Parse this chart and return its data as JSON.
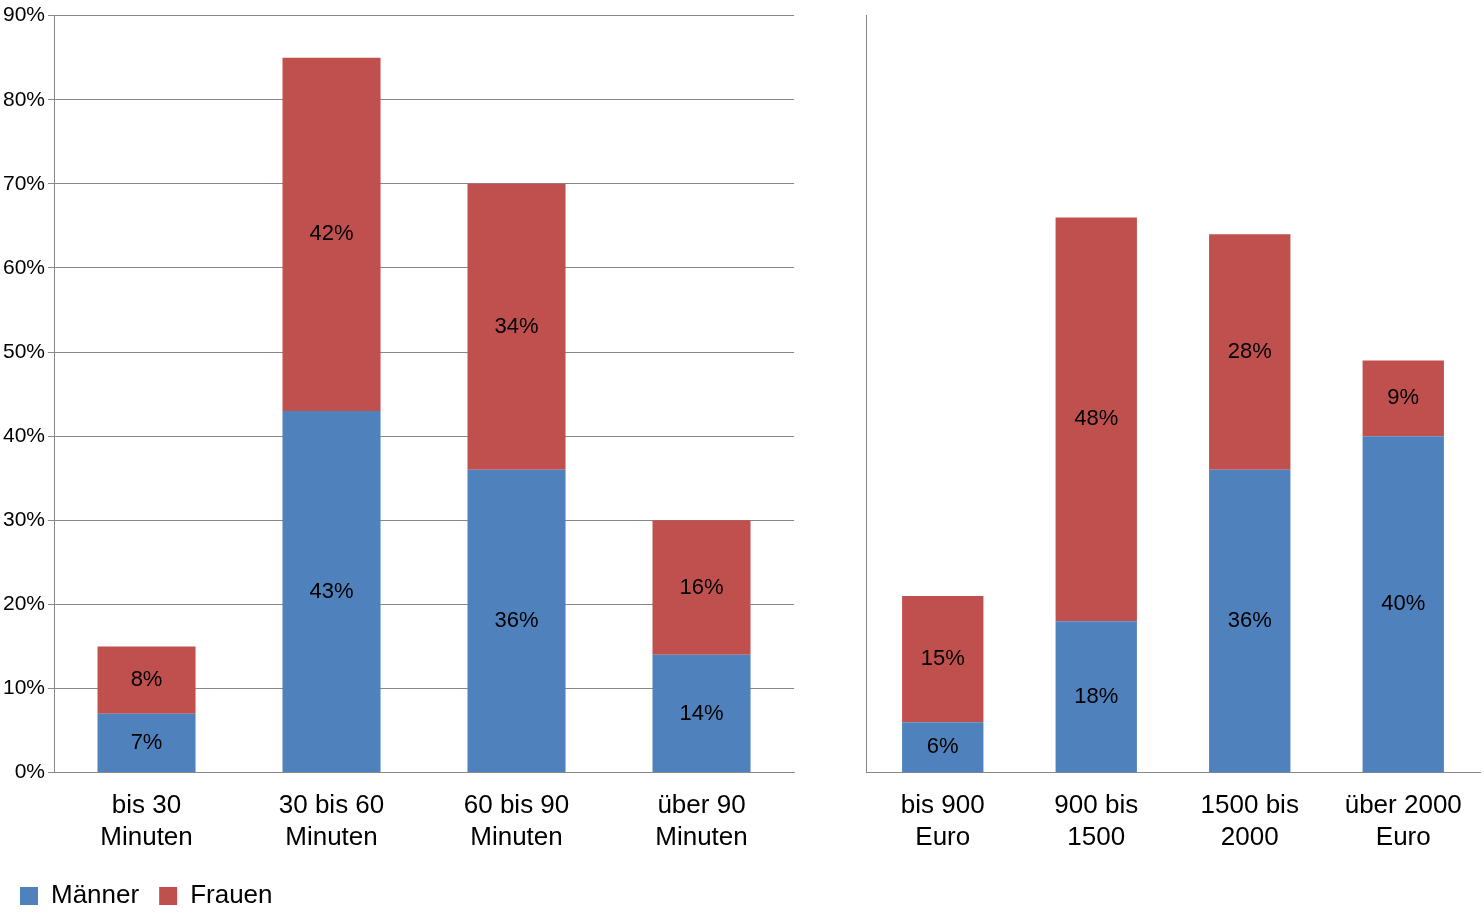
{
  "chart_data": [
    {
      "type": "bar",
      "stacked": true,
      "categories": [
        "bis 30 Minuten",
        "30 bis 60 Minuten",
        "60 bis 90 Minuten",
        "über 90 Minuten"
      ],
      "series": [
        {
          "name": "Männer",
          "color": "#4f81bd",
          "values": [
            7,
            43,
            36,
            14
          ],
          "value_labels": [
            "7%",
            "43%",
            "36%",
            "14%"
          ]
        },
        {
          "name": "Frauen",
          "color": "#c0504d",
          "values": [
            8,
            42,
            34,
            16
          ],
          "value_labels": [
            "8%",
            "42%",
            "34%",
            "16%"
          ]
        }
      ],
      "ylim": [
        0,
        90
      ],
      "yticks": [
        {
          "value": 0,
          "label": "0%"
        },
        {
          "value": 10,
          "label": "10%"
        },
        {
          "value": 20,
          "label": "20%"
        },
        {
          "value": 30,
          "label": "30%"
        },
        {
          "value": 40,
          "label": "40%"
        },
        {
          "value": 50,
          "label": "50%"
        },
        {
          "value": 60,
          "label": "60%"
        },
        {
          "value": 70,
          "label": "70%"
        },
        {
          "value": 80,
          "label": "80%"
        },
        {
          "value": 90,
          "label": "90%"
        }
      ],
      "grid": "y",
      "legend": "bottom left"
    },
    {
      "type": "bar",
      "stacked": true,
      "categories": [
        "bis 900 Euro",
        "900 bis 1500",
        "1500 bis 2000",
        "über 2000 Euro"
      ],
      "series": [
        {
          "color": "#4f81bd",
          "values": [
            6,
            18,
            36,
            40
          ],
          "value_labels": [
            "6%",
            "18%",
            "36%",
            "40%"
          ]
        },
        {
          "color": "#c0504d",
          "values": [
            15,
            48,
            28,
            9
          ],
          "value_labels": [
            "15%",
            "48%",
            "28%",
            "9%"
          ]
        }
      ],
      "ylim": [
        0,
        90
      ],
      "yticks": [
        {
          "value": 0,
          "label": null
        },
        {
          "value": 10,
          "label": null
        },
        {
          "value": 20,
          "label": null
        },
        {
          "value": 30,
          "label": null
        },
        {
          "value": 40,
          "label": null
        },
        {
          "value": 50,
          "label": null
        },
        {
          "value": 60,
          "label": null
        },
        {
          "value": 70,
          "label": null
        },
        {
          "value": 80,
          "label": null
        },
        {
          "value": 90,
          "label": null
        }
      ],
      "grid": "y",
      "tick_labels": "x"
    }
  ]
}
